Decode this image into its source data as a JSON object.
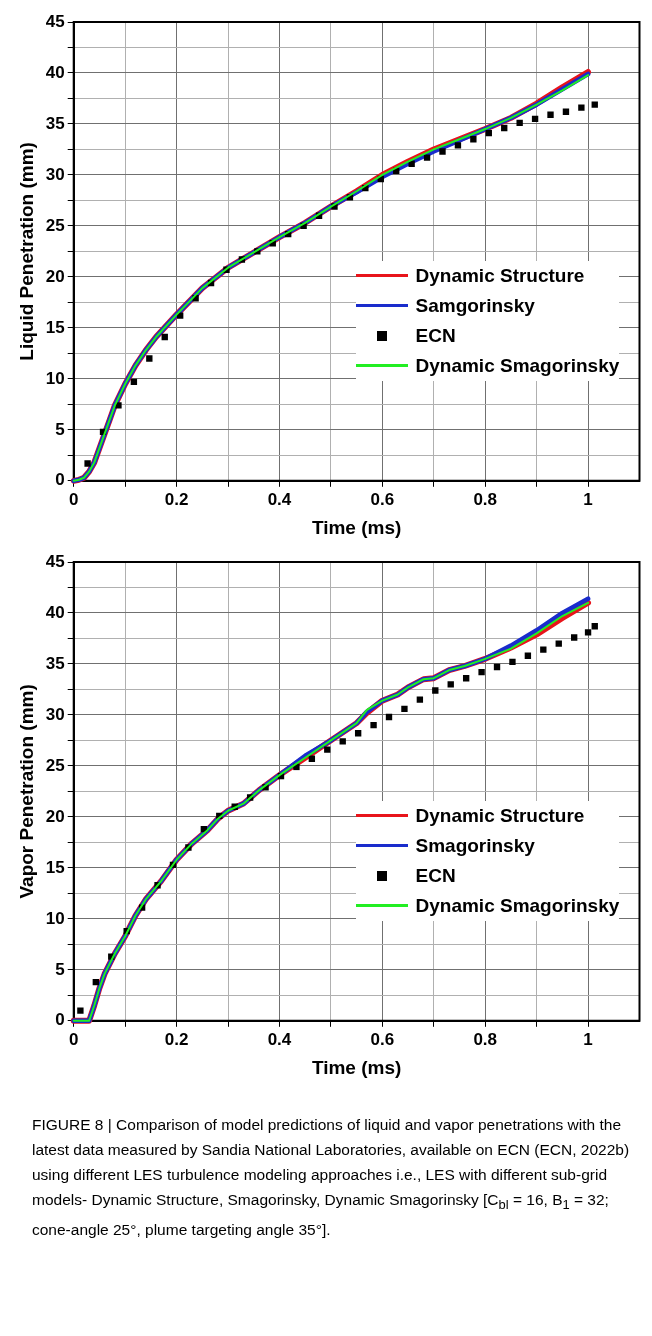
{
  "chart_data": [
    {
      "type": "line",
      "xlabel": "Time (ms)",
      "ylabel": "Liquid Penetration (mm)",
      "xlim": [
        0,
        1.1
      ],
      "ylim": [
        0,
        45
      ],
      "xticks": [
        0,
        {
          "value": 0.1,
          "label": null
        },
        0.2,
        {
          "value": 0.3,
          "label": null
        },
        0.4,
        {
          "value": 0.5,
          "label": null
        },
        0.6,
        {
          "value": 0.7,
          "label": null
        },
        0.8,
        {
          "value": 0.9,
          "label": null
        },
        1
      ],
      "yticks": [
        0,
        {
          "value": 2.5,
          "label": null
        },
        5,
        {
          "value": 7.5,
          "label": null
        },
        10,
        {
          "value": 12.5,
          "label": null
        },
        15,
        {
          "value": 17.5,
          "label": null
        },
        20,
        {
          "value": 22.5,
          "label": null
        },
        25,
        {
          "value": 27.5,
          "label": null
        },
        30,
        {
          "value": 32.5,
          "label": null
        },
        35,
        {
          "value": 37.5,
          "label": null
        },
        40,
        {
          "value": 42.5,
          "label": null
        },
        45
      ],
      "grid": true,
      "legend": "bottom right",
      "x": [
        0,
        0.01,
        0.02,
        0.03,
        0.04,
        0.05,
        0.06,
        0.07,
        0.08,
        0.1,
        0.12,
        0.14,
        0.16,
        0.2,
        0.25,
        0.3,
        0.35,
        0.4,
        0.45,
        0.5,
        0.55,
        0.6,
        0.65,
        0.7,
        0.75,
        0.8,
        0.85,
        0.9,
        0.95,
        1.0
      ],
      "series": [
        {
          "name": "Dynamic Structure",
          "type": "line",
          "color": "#e8141b",
          "values": [
            0,
            0.1,
            0.3,
            0.9,
            1.8,
            3.2,
            4.6,
            6.0,
            7.4,
            9.5,
            11.3,
            12.8,
            14.1,
            16.3,
            18.9,
            20.9,
            22.4,
            23.9,
            25.3,
            26.9,
            28.4,
            30.0,
            31.3,
            32.5,
            33.5,
            34.5,
            35.6,
            37.0,
            38.6,
            40.1
          ]
        },
        {
          "name": "Samgorinsky",
          "type": "line",
          "color": "#1a2ccc",
          "values": [
            0,
            0.1,
            0.3,
            0.9,
            1.8,
            3.2,
            4.6,
            6.0,
            7.4,
            9.5,
            11.3,
            12.8,
            14.1,
            16.3,
            18.9,
            20.9,
            22.4,
            23.9,
            25.3,
            26.9,
            28.3,
            29.8,
            31.1,
            32.3,
            33.4,
            34.5,
            35.6,
            36.9,
            38.4,
            39.9
          ]
        },
        {
          "name": "ECN",
          "type": "scatter",
          "marker": "square",
          "color": "#000000",
          "x": [
            0.027,
            0.057,
            0.087,
            0.117,
            0.147,
            0.177,
            0.207,
            0.237,
            0.267,
            0.297,
            0.327,
            0.357,
            0.387,
            0.417,
            0.447,
            0.477,
            0.507,
            0.537,
            0.567,
            0.597,
            0.627,
            0.657,
            0.687,
            0.717,
            0.747,
            0.777,
            0.807,
            0.837,
            0.867,
            0.897,
            0.927,
            0.957,
            0.987,
            1.013
          ],
          "values": [
            1.7,
            4.8,
            7.4,
            9.7,
            12.0,
            14.1,
            16.2,
            17.9,
            19.4,
            20.7,
            21.7,
            22.5,
            23.3,
            24.2,
            25.0,
            26.0,
            26.9,
            27.8,
            28.7,
            29.6,
            30.4,
            31.1,
            31.7,
            32.3,
            32.9,
            33.5,
            34.1,
            34.6,
            35.1,
            35.5,
            35.9,
            36.2,
            36.6,
            36.9
          ]
        },
        {
          "name": "Dynamic Smagorinsky",
          "type": "line",
          "color": "#22ee22",
          "values": [
            0,
            0.1,
            0.3,
            0.9,
            1.8,
            3.2,
            4.6,
            6.0,
            7.4,
            9.5,
            11.3,
            12.8,
            14.1,
            16.3,
            18.9,
            20.9,
            22.4,
            23.9,
            25.3,
            26.9,
            28.4,
            30.0,
            31.3,
            32.5,
            33.5,
            34.5,
            35.6,
            36.9,
            38.3,
            39.8
          ]
        }
      ]
    },
    {
      "type": "line",
      "xlabel": "Time (ms)",
      "ylabel": "Vapor Penetration (mm)",
      "xlim": [
        0,
        1.1
      ],
      "ylim": [
        0,
        45
      ],
      "xticks": [
        0,
        {
          "value": 0.1,
          "label": null
        },
        0.2,
        {
          "value": 0.3,
          "label": null
        },
        0.4,
        {
          "value": 0.5,
          "label": null
        },
        0.6,
        {
          "value": 0.7,
          "label": null
        },
        0.8,
        {
          "value": 0.9,
          "label": null
        },
        1
      ],
      "yticks": [
        0,
        {
          "value": 2.5,
          "label": null
        },
        5,
        {
          "value": 7.5,
          "label": null
        },
        10,
        {
          "value": 12.5,
          "label": null
        },
        15,
        {
          "value": 17.5,
          "label": null
        },
        20,
        {
          "value": 22.5,
          "label": null
        },
        25,
        {
          "value": 27.5,
          "label": null
        },
        30,
        {
          "value": 32.5,
          "label": null
        },
        35,
        {
          "value": 37.5,
          "label": null
        },
        40,
        {
          "value": 42.5,
          "label": null
        },
        45
      ],
      "grid": true,
      "legend": "bottom right",
      "x": [
        0,
        0.03,
        0.04,
        0.05,
        0.06,
        0.08,
        0.1,
        0.12,
        0.14,
        0.17,
        0.2,
        0.23,
        0.26,
        0.28,
        0.3,
        0.33,
        0.36,
        0.4,
        0.45,
        0.5,
        0.55,
        0.57,
        0.6,
        0.63,
        0.65,
        0.68,
        0.7,
        0.73,
        0.76,
        0.8,
        0.85,
        0.9,
        0.95,
        1.0
      ],
      "series": [
        {
          "name": "Dynamic Structure",
          "type": "line",
          "color": "#e8141b",
          "values": [
            0,
            0,
            1.5,
            3.2,
            4.6,
            6.6,
            8.3,
            10.3,
            11.9,
            13.7,
            15.8,
            17.4,
            18.7,
            19.8,
            20.6,
            21.3,
            22.6,
            24.1,
            25.8,
            27.5,
            29.2,
            30.2,
            31.4,
            32.0,
            32.7,
            33.5,
            33.6,
            34.4,
            34.8,
            35.5,
            36.6,
            37.9,
            39.5,
            41.0
          ]
        },
        {
          "name": "Smagorinsky",
          "type": "line",
          "color": "#1a2ccc",
          "values": [
            0,
            0,
            1.5,
            3.2,
            4.6,
            6.6,
            8.3,
            10.3,
            11.9,
            13.7,
            15.8,
            17.4,
            18.7,
            19.8,
            20.6,
            21.3,
            22.6,
            24.1,
            26.0,
            27.5,
            29.2,
            30.3,
            31.4,
            32.0,
            32.7,
            33.5,
            33.6,
            34.4,
            34.8,
            35.5,
            36.8,
            38.3,
            40.0,
            41.4
          ]
        },
        {
          "name": "ECN",
          "type": "scatter",
          "marker": "square",
          "color": "#000000",
          "x": [
            0.013,
            0.043,
            0.073,
            0.103,
            0.133,
            0.163,
            0.193,
            0.223,
            0.253,
            0.283,
            0.313,
            0.343,
            0.373,
            0.403,
            0.433,
            0.463,
            0.493,
            0.523,
            0.553,
            0.583,
            0.613,
            0.643,
            0.673,
            0.703,
            0.733,
            0.763,
            0.793,
            0.823,
            0.853,
            0.883,
            0.913,
            0.943,
            0.973,
            1.0,
            1.013
          ],
          "values": [
            1.0,
            3.8,
            6.3,
            8.8,
            11.1,
            13.3,
            15.3,
            17.0,
            18.8,
            20.1,
            21.0,
            21.9,
            22.9,
            24.0,
            24.9,
            25.7,
            26.6,
            27.4,
            28.2,
            29.0,
            29.8,
            30.6,
            31.5,
            32.4,
            33.0,
            33.6,
            34.2,
            34.7,
            35.2,
            35.8,
            36.4,
            37.0,
            37.6,
            38.1,
            38.7
          ]
        },
        {
          "name": "Dynamic Smagorinsky",
          "type": "line",
          "color": "#22ee22",
          "values": [
            0,
            0,
            1.5,
            3.2,
            4.6,
            6.6,
            8.3,
            10.3,
            11.9,
            13.7,
            15.8,
            17.4,
            18.7,
            19.8,
            20.6,
            21.3,
            22.6,
            24.1,
            25.8,
            27.5,
            29.2,
            30.5,
            31.4,
            32.0,
            32.7,
            33.5,
            33.6,
            34.4,
            34.8,
            35.5,
            36.5,
            38.0,
            39.7,
            41.0
          ]
        }
      ],
      "annotations": [
        "FIGURE 8 | Comparison of model predictions of liquid and vapor penetrations with the latest data measured by Sandia National Laboratories, available on ECN (ECN, 2022b) using different LES turbulence modeling approaches i.e., LES with different sub-grid models- Dynamic Structure, Smagorinsky, Dynamic Smagorinsky [C$_{bl}$ = 16, B$_{1}$ = 32; cone-angle 25°, plume targeting angle 35°]."
      ]
    }
  ]
}
